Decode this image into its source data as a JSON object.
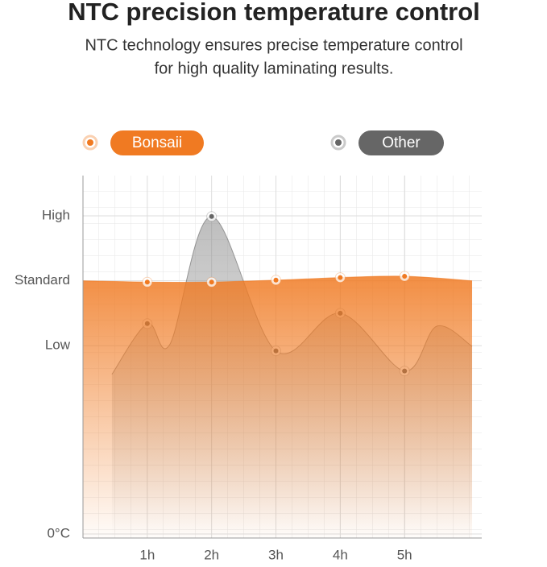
{
  "chart_data": {
    "type": "area",
    "title": "NTC precision temperature control",
    "subtitle": [
      "NTC technology ensures precise temperature control",
      "for high quality laminating results."
    ],
    "x": [],
    "xlim": [
      0,
      6.2
    ],
    "xticks": [
      {
        "value": 1,
        "label": "1h"
      },
      {
        "value": 2,
        "label": "2h"
      },
      {
        "value": 3,
        "label": "3h"
      },
      {
        "value": 4,
        "label": "4h"
      },
      {
        "value": 5,
        "label": "5h"
      }
    ],
    "ylim": [
      0,
      5.52
    ],
    "yticks": [
      {
        "value": 0,
        "label": "0°C"
      },
      {
        "value": 2.9,
        "label": "Low"
      },
      {
        "value": 3.9,
        "label": "Standard"
      },
      {
        "value": 4.9,
        "label": "High"
      }
    ],
    "grid": true,
    "series": [
      {
        "name": "Other",
        "color": "#666666",
        "x": [
          0.45,
          1,
          1.35,
          2,
          3,
          4,
          5,
          5.5,
          6.05
        ],
        "values": [
          2.46,
          3.24,
          2.92,
          4.89,
          2.82,
          3.4,
          2.51,
          3.2,
          2.89
        ]
      },
      {
        "name": "Bonsaii",
        "color": "#f07a22",
        "x": [
          0,
          1,
          2,
          3,
          4,
          5,
          6.05
        ],
        "values": [
          3.9,
          3.88,
          3.88,
          3.91,
          3.95,
          3.97,
          3.9
        ]
      }
    ]
  }
}
